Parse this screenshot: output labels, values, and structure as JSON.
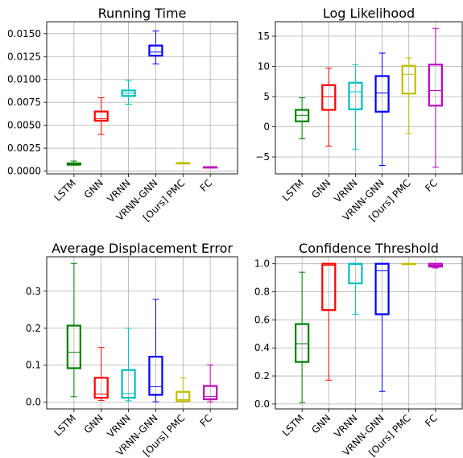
{
  "chart_data": [
    {
      "type": "box",
      "title": "Running Time",
      "categories": [
        "LSTM",
        "GNN",
        "VRNN",
        "VRNN-GNN",
        "[Ours] PMC",
        "FC"
      ],
      "colors": [
        "#008000",
        "#ff0000",
        "#00bfbf",
        "#0000ff",
        "#bfbf00",
        "#bf00bf"
      ],
      "ylim": [
        -0.0003,
        0.0163
      ],
      "yticks": [
        "0.0000",
        "0.0025",
        "0.0050",
        "0.0075",
        "0.0100",
        "0.0125",
        "0.0150"
      ],
      "grid": true,
      "boxes": [
        {
          "whislo": 0.00065,
          "q1": 0.0007,
          "med": 0.00075,
          "q3": 0.00085,
          "whishi": 0.0011
        },
        {
          "whislo": 0.004,
          "q1": 0.0055,
          "med": 0.0057,
          "q3": 0.0065,
          "whishi": 0.008
        },
        {
          "whislo": 0.0073,
          "q1": 0.0082,
          "med": 0.0085,
          "q3": 0.0088,
          "whishi": 0.0099
        },
        {
          "whislo": 0.0117,
          "q1": 0.0126,
          "med": 0.013,
          "q3": 0.0137,
          "whishi": 0.0153
        },
        {
          "whislo": 0.0008,
          "q1": 0.00083,
          "med": 0.00085,
          "q3": 0.00088,
          "whishi": 0.00095
        },
        {
          "whislo": 0.00035,
          "q1": 0.00038,
          "med": 0.0004,
          "q3": 0.00043,
          "whishi": 0.00048
        }
      ]
    },
    {
      "type": "box",
      "title": "Log Likelihood",
      "categories": [
        "LSTM",
        "GNN",
        "VRNN",
        "VRNN-GNN",
        "[Ours] PMC",
        "FC"
      ],
      "colors": [
        "#008000",
        "#ff0000",
        "#00bfbf",
        "#0000ff",
        "#bfbf00",
        "#bf00bf"
      ],
      "ylim": [
        -7.8,
        17.4
      ],
      "yticks": [
        "−5",
        "0",
        "5",
        "10",
        "15"
      ],
      "grid": true,
      "boxes": [
        {
          "whislo": -2.0,
          "q1": 0.9,
          "med": 1.9,
          "q3": 2.8,
          "whishi": 4.8
        },
        {
          "whislo": -3.2,
          "q1": 2.8,
          "med": 5.0,
          "q3": 6.9,
          "whishi": 9.7
        },
        {
          "whislo": -3.7,
          "q1": 2.9,
          "med": 5.8,
          "q3": 7.3,
          "whishi": 10.3
        },
        {
          "whislo": -6.4,
          "q1": 2.5,
          "med": 5.6,
          "q3": 8.4,
          "whishi": 12.2
        },
        {
          "whislo": -1.1,
          "q1": 5.5,
          "med": 8.7,
          "q3": 10.1,
          "whishi": 11.4
        },
        {
          "whislo": -6.7,
          "q1": 3.5,
          "med": 6.0,
          "q3": 10.3,
          "whishi": 16.3
        }
      ]
    },
    {
      "type": "box",
      "title": "Average Displacement Error",
      "categories": [
        "LSTM",
        "GNN",
        "VRNN",
        "VRNN-GNN",
        "[Ours] PMC",
        "FC"
      ],
      "colors": [
        "#008000",
        "#ff0000",
        "#00bfbf",
        "#0000ff",
        "#bfbf00",
        "#bf00bf"
      ],
      "ylim": [
        -0.018,
        0.393
      ],
      "yticks": [
        "0.0",
        "0.1",
        "0.2",
        "0.3"
      ],
      "grid": true,
      "boxes": [
        {
          "whislo": 0.015,
          "q1": 0.092,
          "med": 0.135,
          "q3": 0.207,
          "whishi": 0.375
        },
        {
          "whislo": 0.005,
          "q1": 0.012,
          "med": 0.022,
          "q3": 0.066,
          "whishi": 0.148
        },
        {
          "whislo": 0.004,
          "q1": 0.012,
          "med": 0.024,
          "q3": 0.087,
          "whishi": 0.2
        },
        {
          "whislo": 0.001,
          "q1": 0.02,
          "med": 0.042,
          "q3": 0.123,
          "whishi": 0.278
        },
        {
          "whislo": 0.001,
          "q1": 0.003,
          "med": 0.007,
          "q3": 0.028,
          "whishi": 0.066
        },
        {
          "whislo": 0.001,
          "q1": 0.008,
          "med": 0.016,
          "q3": 0.044,
          "whishi": 0.101
        }
      ]
    },
    {
      "type": "box",
      "title": "Confidence Threshold",
      "categories": [
        "LSTM",
        "GNN",
        "VRNN",
        "VRNN-GNN",
        "[Ours] PMC",
        "FC"
      ],
      "colors": [
        "#008000",
        "#ff0000",
        "#00bfbf",
        "#0000ff",
        "#bfbf00",
        "#bf00bf"
      ],
      "ylim": [
        -0.035,
        1.05
      ],
      "yticks": [
        "0.0",
        "0.2",
        "0.4",
        "0.6",
        "0.8",
        "1.0"
      ],
      "grid": true,
      "boxes": [
        {
          "whislo": 0.01,
          "q1": 0.3,
          "med": 0.43,
          "q3": 0.57,
          "whishi": 0.94
        },
        {
          "whislo": 0.17,
          "q1": 0.67,
          "med": 0.99,
          "q3": 1.0,
          "whishi": 1.0
        },
        {
          "whislo": 0.64,
          "q1": 0.86,
          "med": 0.995,
          "q3": 1.0,
          "whishi": 1.0
        },
        {
          "whislo": 0.09,
          "q1": 0.64,
          "med": 0.95,
          "q3": 1.0,
          "whishi": 1.0
        },
        {
          "whislo": 0.995,
          "q1": 0.997,
          "med": 0.999,
          "q3": 1.0,
          "whishi": 1.0
        },
        {
          "whislo": 0.97,
          "q1": 0.98,
          "med": 0.99,
          "q3": 1.0,
          "whishi": 1.0
        }
      ]
    }
  ]
}
